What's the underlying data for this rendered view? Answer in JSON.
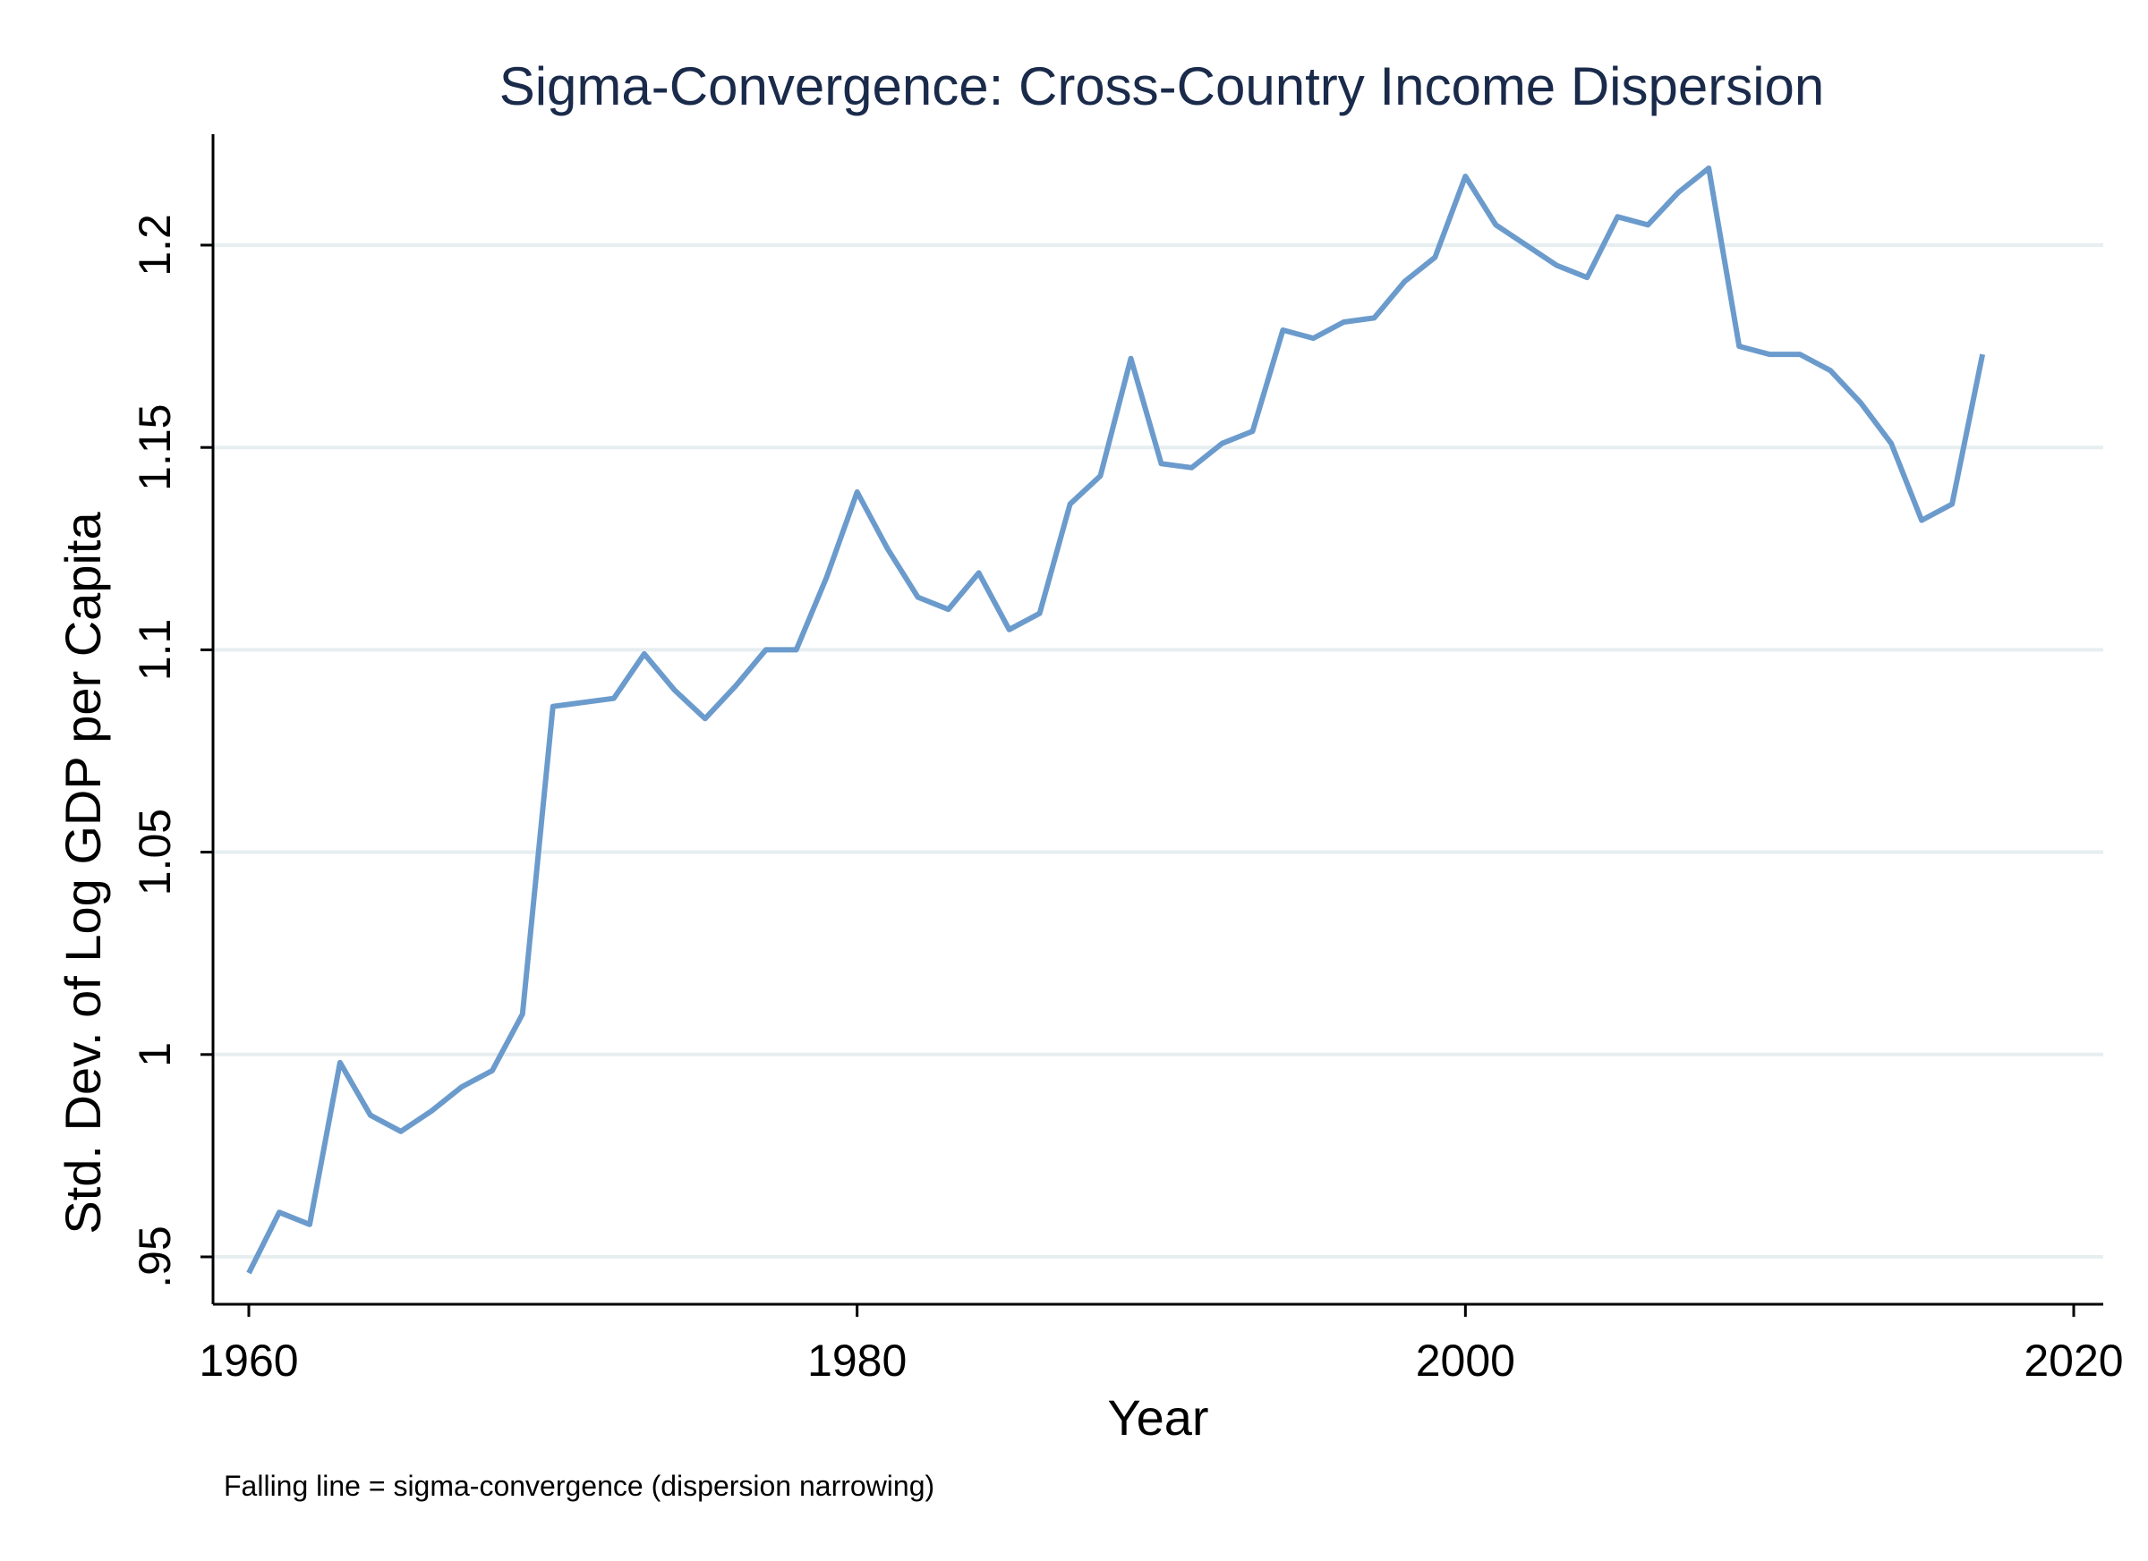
{
  "chart_data": {
    "type": "line",
    "title": "Sigma-Convergence: Cross-Country Income Dispersion",
    "xlabel": "Year",
    "ylabel": "Std. Dev. of Log GDP per Capita",
    "note": "Falling line = sigma-convergence (dispersion narrowing)",
    "xlim": [
      1959,
      2021
    ],
    "ylim": [
      0.938,
      1.228
    ],
    "xticks": [
      1960,
      1980,
      2000,
      2020
    ],
    "xtick_labels": [
      "1960",
      "1980",
      "2000",
      "2020"
    ],
    "yticks": [
      0.95,
      1.0,
      1.05,
      1.1,
      1.15,
      1.2
    ],
    "ytick_labels": [
      ".95",
      "1",
      "1.05",
      "1.1",
      "1.15",
      "1.2"
    ],
    "grid": "horizontal",
    "line_color": "#6b9bcc",
    "series": [
      {
        "x": [
          1960,
          1961,
          1962,
          1963,
          1964,
          1965,
          1966,
          1967,
          1968,
          1969,
          1970,
          1971,
          1972,
          1973,
          1974,
          1975,
          1976,
          1977,
          1978,
          1979,
          1980,
          1981,
          1982,
          1983,
          1984,
          1985,
          1986,
          1987,
          1988,
          1989,
          1990,
          1991,
          1992,
          1993,
          1994,
          1995,
          1996,
          1997,
          1998,
          1999,
          2000,
          2001,
          2002,
          2003,
          2004,
          2005,
          2006,
          2007,
          2008,
          2009,
          2010,
          2011,
          2012,
          2013,
          2014,
          2015,
          2016,
          2017
        ],
        "y": [
          0.946,
          0.961,
          0.958,
          0.998,
          0.985,
          0.981,
          0.986,
          0.992,
          0.996,
          1.01,
          1.086,
          1.087,
          1.088,
          1.099,
          1.09,
          1.083,
          1.091,
          1.1,
          1.1,
          1.118,
          1.139,
          1.125,
          1.113,
          1.11,
          1.119,
          1.105,
          1.109,
          1.136,
          1.143,
          1.172,
          1.146,
          1.145,
          1.151,
          1.154,
          1.179,
          1.177,
          1.181,
          1.182,
          1.191,
          1.197,
          1.217,
          1.205,
          1.2,
          1.195,
          1.192,
          1.207,
          1.205,
          1.213,
          1.219,
          1.175,
          1.173,
          1.173,
          1.169,
          1.161,
          1.151,
          1.132,
          1.136,
          1.173
        ]
      }
    ]
  }
}
